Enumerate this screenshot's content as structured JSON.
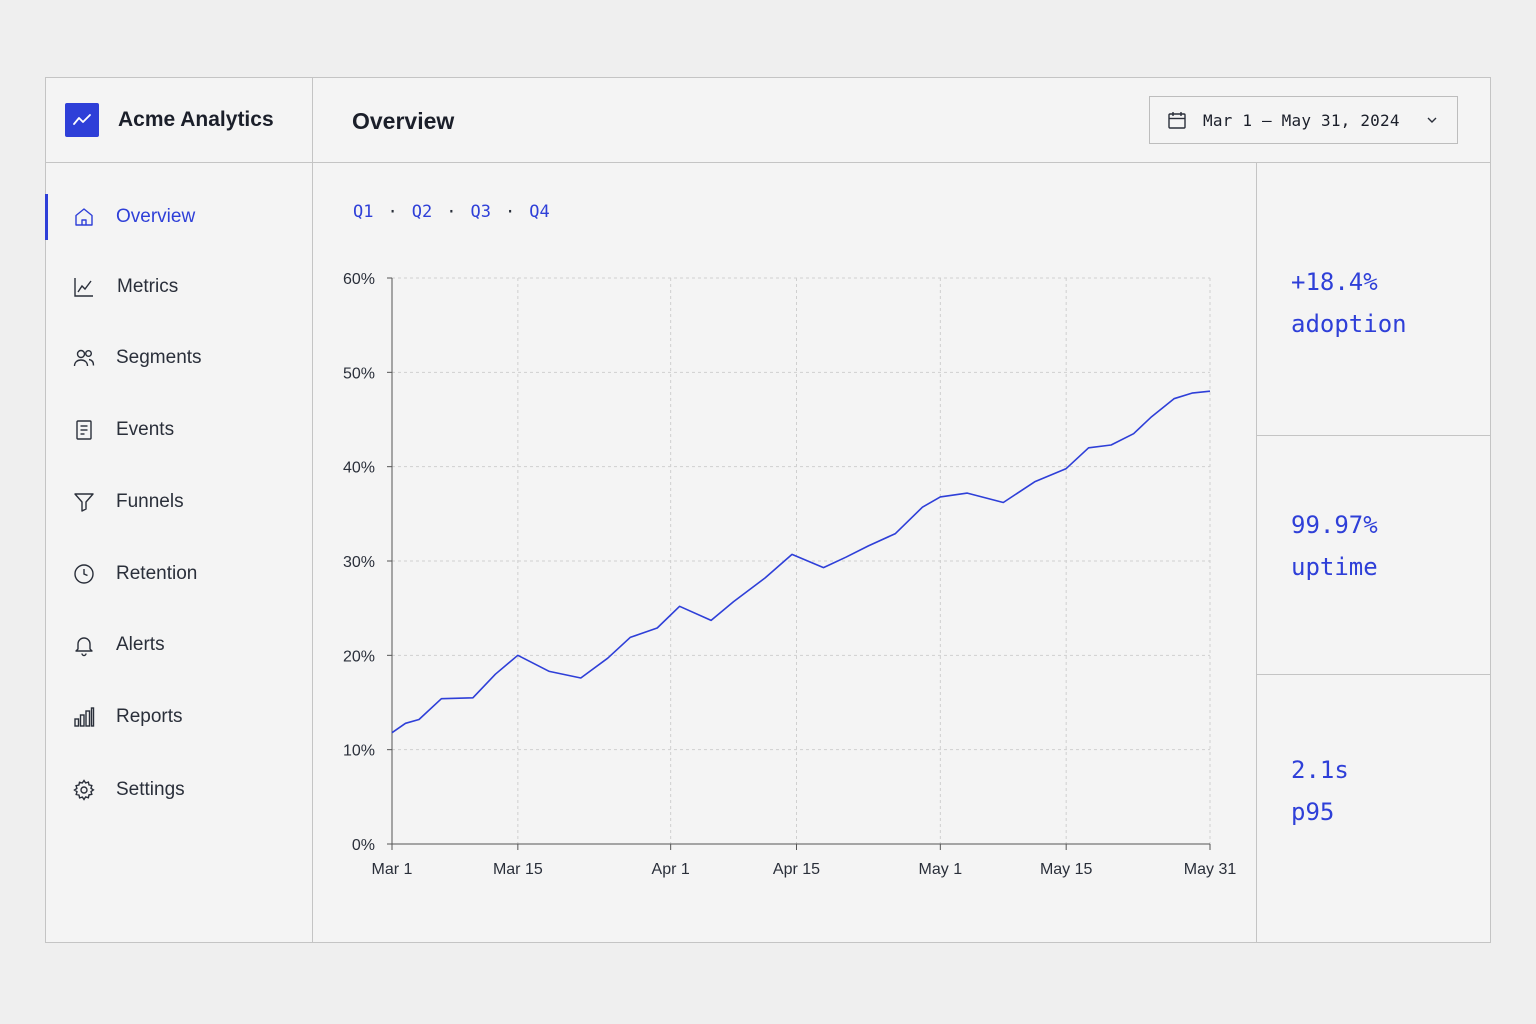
{
  "app": {
    "name": "Acme Analytics"
  },
  "header": {
    "title": "Overview",
    "date_range": "Mar 1 – May 31, 2024"
  },
  "sidebar": {
    "items": [
      {
        "label": "Overview",
        "icon": "home-icon",
        "active": true
      },
      {
        "label": "Metrics",
        "icon": "line-chart-icon"
      },
      {
        "label": "Segments",
        "icon": "users-icon"
      },
      {
        "label": "Events",
        "icon": "document-icon"
      },
      {
        "label": "Funnels",
        "icon": "funnel-icon"
      },
      {
        "label": "Retention",
        "icon": "clock-icon"
      },
      {
        "label": "Alerts",
        "icon": "bell-icon"
      },
      {
        "label": "Reports",
        "icon": "bar-chart-icon"
      },
      {
        "label": "Settings",
        "icon": "gear-icon"
      }
    ]
  },
  "quarters": [
    "Q1",
    "Q2",
    "Q3",
    "Q4"
  ],
  "stats": [
    {
      "value": "+18.4%",
      "label": "adoption"
    },
    {
      "value": "99.97%",
      "label": "uptime"
    },
    {
      "value": "2.1s",
      "label": "p95"
    }
  ],
  "colors": {
    "accent": "#2e3fd8",
    "border": "#c4c4c4",
    "background": "#f4f4f4"
  },
  "chart_data": {
    "type": "line",
    "x_tick_labels": [
      "Mar 1",
      "Mar 15",
      "Apr 1",
      "Apr 15",
      "May 1",
      "May 15",
      "May 31"
    ],
    "x_tick_days": [
      0,
      14,
      31,
      45,
      61,
      75,
      91
    ],
    "y_tick_labels": [
      "0%",
      "10%",
      "20%",
      "30%",
      "40%",
      "50%",
      "60%"
    ],
    "ylim": [
      0,
      60
    ],
    "xlim": [
      0,
      91
    ],
    "grid": true,
    "series": [
      {
        "color": "#2e3fd8",
        "x": [
          0,
          1.5,
          3,
          5.5,
          9,
          11.5,
          14,
          17.5,
          21,
          24,
          26.5,
          29.5,
          32,
          35.5,
          38,
          41.5,
          44.5,
          48,
          50.5,
          53,
          56,
          59,
          61,
          64,
          68,
          71.5,
          75,
          77.5,
          80,
          82.5,
          84.5,
          87,
          89,
          91
        ],
        "y": [
          11.8,
          12.8,
          13.2,
          15.4,
          15.5,
          18,
          20.0,
          18.3,
          17.6,
          19.7,
          21.9,
          22.9,
          25.2,
          23.7,
          25.7,
          28.2,
          30.7,
          29.3,
          30.4,
          31.6,
          32.9,
          35.7,
          36.8,
          37.2,
          36.2,
          38.4,
          39.8,
          42.0,
          42.3,
          43.5,
          45.3,
          47.2,
          47.8,
          48.0
        ]
      }
    ]
  }
}
